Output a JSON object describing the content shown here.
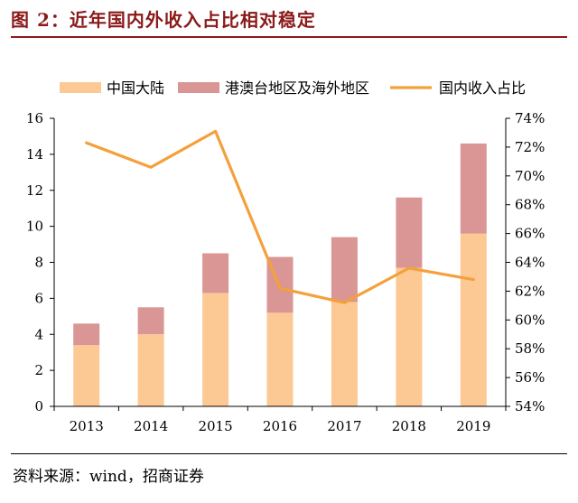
{
  "title": "图 2：近年国内外收入占比相对稳定",
  "source": "资料来源：wind，招商证券",
  "chart_data": {
    "type": "bar",
    "stacked": true,
    "categories": [
      "2013",
      "2014",
      "2015",
      "2016",
      "2017",
      "2018",
      "2019"
    ],
    "series": [
      {
        "name": "中国大陆",
        "type": "bar",
        "axis": "left",
        "color": "#fcc995",
        "values": [
          3.4,
          4.0,
          6.3,
          5.2,
          5.8,
          7.7,
          9.6
        ]
      },
      {
        "name": "港澳台地区及海外地区",
        "type": "bar",
        "axis": "left",
        "color": "#d99694",
        "values": [
          1.2,
          1.5,
          2.2,
          3.1,
          3.6,
          3.9,
          5.0
        ]
      },
      {
        "name": "国内收入占比",
        "type": "line",
        "axis": "right",
        "color": "#f4a03c",
        "values": [
          72.3,
          70.6,
          73.1,
          62.2,
          61.2,
          63.6,
          62.8
        ]
      }
    ],
    "ylim": [
      0,
      16
    ],
    "yticks": [
      "0",
      "2",
      "4",
      "6",
      "8",
      "10",
      "12",
      "14",
      "16"
    ],
    "y2lim": [
      54,
      74
    ],
    "y2ticks": [
      "54%",
      "56%",
      "58%",
      "60%",
      "62%",
      "64%",
      "66%",
      "68%",
      "70%",
      "72%",
      "74%"
    ],
    "legend_position": "top",
    "grid": false
  }
}
